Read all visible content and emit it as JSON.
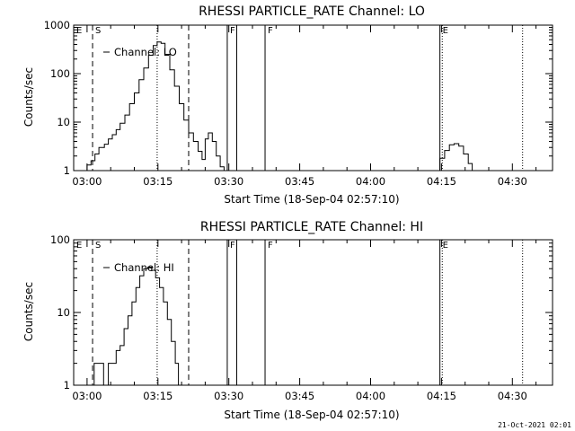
{
  "footer": "21-Oct-2021 02:01",
  "chart_data": [
    {
      "type": "line",
      "title": "RHESSI PARTICLE_RATE Channel: LO",
      "xlabel": "Start Time (18-Sep-04 02:57:10)",
      "ylabel": "Counts/sec",
      "y_scale": "log",
      "xlim": [
        "02:57:10",
        "04:38:30"
      ],
      "ylim": [
        1,
        1000
      ],
      "x_ticks": [
        "03:00",
        "03:15",
        "03:30",
        "03:45",
        "04:00",
        "04:15",
        "04:30"
      ],
      "y_ticks": [
        "1",
        "10",
        "100",
        "1000"
      ],
      "legend": "top-left",
      "series": [
        {
          "name": "Channel: LO",
          "points": [
            [
              "02:58:50",
              1
            ],
            [
              "03:00:00",
              1.3
            ],
            [
              "03:00:50",
              1.6
            ],
            [
              "03:01:40",
              2.2
            ],
            [
              "03:02:30",
              3
            ],
            [
              "03:03:40",
              3.5
            ],
            [
              "03:04:30",
              4.5
            ],
            [
              "03:05:20",
              5.5
            ],
            [
              "03:06:10",
              7
            ],
            [
              "03:07:00",
              9.5
            ],
            [
              "03:08:00",
              14
            ],
            [
              "03:09:00",
              24
            ],
            [
              "03:10:00",
              40
            ],
            [
              "03:11:00",
              75
            ],
            [
              "03:12:00",
              130
            ],
            [
              "03:13:00",
              240
            ],
            [
              "03:14:00",
              380
            ],
            [
              "03:14:50",
              450
            ],
            [
              "03:15:40",
              420
            ],
            [
              "03:16:30",
              250
            ],
            [
              "03:17:30",
              120
            ],
            [
              "03:18:30",
              55
            ],
            [
              "03:19:30",
              24
            ],
            [
              "03:20:30",
              11
            ],
            [
              "03:21:30",
              6
            ],
            [
              "03:22:30",
              4
            ],
            [
              "03:23:30",
              2.5
            ],
            [
              "03:24:20",
              1.7
            ],
            [
              "03:25:00",
              4.5
            ],
            [
              "03:25:40",
              6
            ],
            [
              "03:26:30",
              4
            ],
            [
              "03:27:20",
              2
            ],
            [
              "03:28:10",
              1.2
            ],
            [
              "03:29:00",
              1
            ]
          ]
        },
        {
          "name": "Channel: LO",
          "points": [
            [
              "04:13:40",
              1
            ],
            [
              "04:14:40",
              1.8
            ],
            [
              "04:15:40",
              2.6
            ],
            [
              "04:16:40",
              3.4
            ],
            [
              "04:17:40",
              3.6
            ],
            [
              "04:18:40",
              3.2
            ],
            [
              "04:19:40",
              2.2
            ],
            [
              "04:20:40",
              1.4
            ],
            [
              "04:21:30",
              1
            ]
          ]
        }
      ],
      "markers": [
        {
          "time": "02:57:10",
          "label": "E",
          "style": "solid"
        },
        {
          "time": "03:01:10",
          "label": "S",
          "style": "dashed"
        },
        {
          "time": "03:14:50",
          "label": "",
          "style": "dotted"
        },
        {
          "time": "03:21:30",
          "label": "",
          "style": "dashed"
        },
        {
          "time": "03:29:40",
          "label": "F",
          "style": "solid"
        },
        {
          "time": "03:31:40",
          "label": "",
          "style": "solid"
        },
        {
          "time": "03:37:40",
          "label": "F",
          "style": "solid"
        },
        {
          "time": "04:14:40",
          "label": "E",
          "style": "solid"
        },
        {
          "time": "04:15:10",
          "label": "",
          "style": "dotted"
        },
        {
          "time": "04:32:10",
          "label": "",
          "style": "dotted"
        }
      ]
    },
    {
      "type": "line",
      "title": "RHESSI PARTICLE_RATE Channel: HI",
      "xlabel": "Start Time (18-Sep-04 02:57:10)",
      "ylabel": "Counts/sec",
      "y_scale": "log",
      "xlim": [
        "02:57:10",
        "04:38:30"
      ],
      "ylim": [
        1,
        100
      ],
      "x_ticks": [
        "03:00",
        "03:15",
        "03:30",
        "03:45",
        "04:00",
        "04:15",
        "04:30"
      ],
      "y_ticks": [
        "1",
        "10",
        "100"
      ],
      "legend": "top-left",
      "series": [
        {
          "name": "Channel: HI",
          "points": [
            [
              "03:01:00",
              1
            ],
            [
              "03:01:30",
              2
            ],
            [
              "03:03:20",
              2
            ],
            [
              "03:03:30",
              1
            ],
            [
              "03:04:20",
              1
            ],
            [
              "03:04:30",
              2
            ],
            [
              "03:05:30",
              2
            ],
            [
              "03:06:10",
              3
            ],
            [
              "03:07:00",
              3.5
            ],
            [
              "03:07:50",
              6
            ],
            [
              "03:08:40",
              9
            ],
            [
              "03:09:30",
              14
            ],
            [
              "03:10:20",
              22
            ],
            [
              "03:11:10",
              32
            ],
            [
              "03:12:00",
              40
            ],
            [
              "03:12:50",
              42
            ],
            [
              "03:13:40",
              38
            ],
            [
              "03:14:30",
              30
            ],
            [
              "03:15:20",
              22
            ],
            [
              "03:16:10",
              14
            ],
            [
              "03:17:00",
              8
            ],
            [
              "03:17:50",
              4
            ],
            [
              "03:18:40",
              2
            ],
            [
              "03:19:20",
              1
            ]
          ]
        }
      ],
      "markers": [
        {
          "time": "02:57:10",
          "label": "E",
          "style": "solid"
        },
        {
          "time": "03:01:10",
          "label": "S",
          "style": "dashed"
        },
        {
          "time": "03:14:50",
          "label": "",
          "style": "dotted"
        },
        {
          "time": "03:21:30",
          "label": "",
          "style": "dashed"
        },
        {
          "time": "03:29:40",
          "label": "F",
          "style": "solid"
        },
        {
          "time": "03:31:40",
          "label": "",
          "style": "solid"
        },
        {
          "time": "03:37:40",
          "label": "F",
          "style": "solid"
        },
        {
          "time": "04:14:40",
          "label": "E",
          "style": "solid"
        },
        {
          "time": "04:15:10",
          "label": "",
          "style": "dotted"
        },
        {
          "time": "04:32:10",
          "label": "",
          "style": "dotted"
        }
      ]
    }
  ]
}
